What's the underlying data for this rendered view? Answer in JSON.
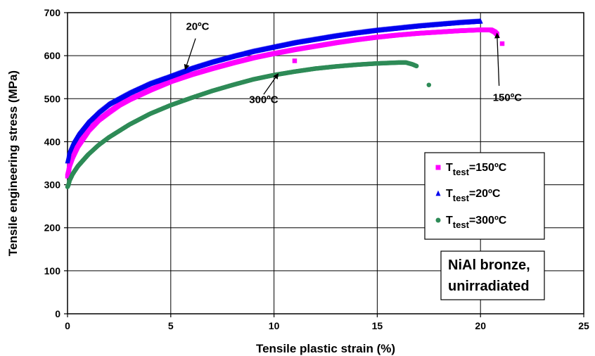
{
  "chart_data": {
    "type": "scatter",
    "xlabel": "Tensile plastic strain (%)",
    "ylabel": "Tensile engineering stress (MPa)",
    "xlim": [
      0,
      25
    ],
    "ylim": [
      0,
      700
    ],
    "xticks": [
      0,
      5,
      10,
      15,
      20,
      25
    ],
    "yticks": [
      0,
      100,
      200,
      300,
      400,
      500,
      600,
      700
    ],
    "grid": true,
    "legend_position": "right",
    "series": [
      {
        "name": "T_test=150ºC",
        "legend_main": "T",
        "legend_sub": "test",
        "legend_rest": "=150ºC",
        "marker": "square",
        "color": "#ff00ff",
        "points": [
          [
            0,
            320
          ],
          [
            0.05,
            330
          ],
          [
            0.1,
            345
          ],
          [
            0.25,
            365
          ],
          [
            0.5,
            390
          ],
          [
            1,
            425
          ],
          [
            1.5,
            450
          ],
          [
            2,
            468
          ],
          [
            2.5,
            485
          ],
          [
            3,
            498
          ],
          [
            4,
            520
          ],
          [
            5,
            540
          ],
          [
            6,
            556
          ],
          [
            7,
            570
          ],
          [
            8,
            583
          ],
          [
            9,
            595
          ],
          [
            10,
            605
          ],
          [
            11,
            614
          ],
          [
            12,
            622
          ],
          [
            13,
            630
          ],
          [
            14,
            637
          ],
          [
            15,
            643
          ],
          [
            16,
            648
          ],
          [
            17,
            652
          ],
          [
            18,
            655
          ],
          [
            19,
            658
          ],
          [
            20,
            660
          ],
          [
            20.5,
            660
          ],
          [
            20.7,
            655
          ],
          [
            20.8,
            650
          ]
        ],
        "outliers": [
          [
            11,
            588
          ],
          [
            21.05,
            628
          ]
        ]
      },
      {
        "name": "T_test=20ºC",
        "legend_main": "T",
        "legend_sub": "test",
        "legend_rest": "=20ºC",
        "marker": "triangle",
        "color": "#0000ee",
        "points": [
          [
            0,
            355
          ],
          [
            0.05,
            365
          ],
          [
            0.1,
            378
          ],
          [
            0.25,
            395
          ],
          [
            0.5,
            415
          ],
          [
            1,
            445
          ],
          [
            1.5,
            468
          ],
          [
            2,
            487
          ],
          [
            2.5,
            500
          ],
          [
            3,
            513
          ],
          [
            4,
            535
          ],
          [
            5,
            552
          ],
          [
            6,
            570
          ],
          [
            7,
            585
          ],
          [
            8,
            598
          ],
          [
            9,
            610
          ],
          [
            10,
            620
          ],
          [
            11,
            630
          ],
          [
            12,
            638
          ],
          [
            13,
            646
          ],
          [
            14,
            653
          ],
          [
            15,
            659
          ],
          [
            16,
            664
          ],
          [
            17,
            669
          ],
          [
            18,
            673
          ],
          [
            19,
            677
          ],
          [
            20,
            680
          ]
        ],
        "outliers": []
      },
      {
        "name": "T_test=300ºC",
        "legend_main": "T",
        "legend_sub": "test",
        "legend_rest": "=300ºC",
        "marker": "circle",
        "color": "#2e8b57",
        "points": [
          [
            0,
            295
          ],
          [
            0.05,
            300
          ],
          [
            0.1,
            310
          ],
          [
            0.25,
            325
          ],
          [
            0.5,
            343
          ],
          [
            1,
            370
          ],
          [
            1.5,
            392
          ],
          [
            2,
            410
          ],
          [
            2.5,
            425
          ],
          [
            3,
            440
          ],
          [
            4,
            465
          ],
          [
            5,
            485
          ],
          [
            6,
            502
          ],
          [
            7,
            518
          ],
          [
            8,
            532
          ],
          [
            9,
            545
          ],
          [
            10,
            555
          ],
          [
            11,
            563
          ],
          [
            12,
            570
          ],
          [
            13,
            575
          ],
          [
            14,
            579
          ],
          [
            15,
            582
          ],
          [
            16,
            584
          ],
          [
            16.4,
            584
          ],
          [
            16.7,
            580
          ],
          [
            16.9,
            576
          ]
        ],
        "outliers": [
          [
            17.5,
            532
          ]
        ]
      }
    ],
    "annotations": [
      {
        "text": "20ºC",
        "label_at": [
          6.3,
          660
        ],
        "arrow_from": [
          6.2,
          640
        ],
        "arrow_to": [
          5.7,
          568
        ]
      },
      {
        "text": "300ºC",
        "label_at": [
          9.5,
          490
        ],
        "arrow_from": [
          9.5,
          510
        ],
        "arrow_to": [
          10.2,
          558
        ]
      },
      {
        "text": "150ºC",
        "label_at": [
          21.3,
          495
        ],
        "arrow_from": [
          20.9,
          530
        ],
        "arrow_to": [
          20.8,
          652
        ]
      }
    ],
    "note_box": [
      "NiAl bronze,",
      "unirradiated"
    ]
  }
}
